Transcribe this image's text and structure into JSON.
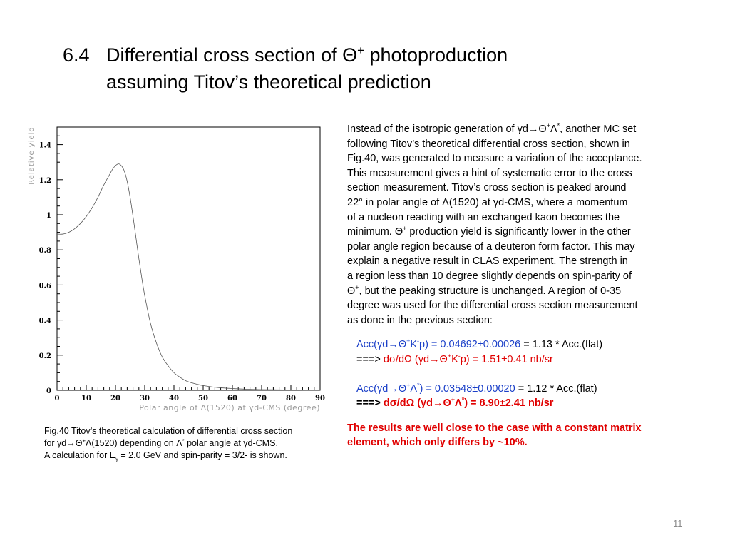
{
  "slide": {
    "section_number": "6.4",
    "title_line1_pre": "Differential cross section of ",
    "title_theta": "Θ",
    "title_plus": "+",
    "title_line1_post": " photoproduction",
    "title_line2": "assuming Titov’s theoretical prediction",
    "page_number": "11"
  },
  "caption": {
    "line1": "Fig.40 Titov’s theoretical calculation of differential cross section",
    "line2_a": "for γd→Θ",
    "line2_b": "+",
    "line2_c": "Λ(1520) depending on Λ",
    "line2_d": "*",
    "line2_e": " polar angle at γd-CMS.",
    "line3_a": "A calculation for E",
    "line3_b": "γ",
    "line3_c": " = 2.0 GeV and spin-parity = 3/2- is shown."
  },
  "text": {
    "p1_a": "Instead of the isotropic generation of γd→Θ",
    "p1_b": "+",
    "p1_c": "Λ",
    "p1_d": "*",
    "p1_e": ", another MC set",
    "lines": [
      "following Titov’s theoretical differential cross section, shown in",
      "Fig.40, was generated to measure a variation of the acceptance.",
      "This measurement gives a hint of systematic error to the cross",
      "section measurement. Titov’s cross section is peaked around",
      "22° in polar angle of Λ(1520) at γd-CMS, where a momentum",
      "of a nucleon reacting with an exchanged kaon becomes the"
    ],
    "p2_a": "minimum. Θ",
    "p2_b": "+",
    "p2_c": " production yield is significantly lower in the other",
    "lines2": [
      "polar angle region because of a deuteron form factor. This may",
      "explain a negative result in CLAS experiment. The strength in",
      "a region less than 10 degree slightly depends on spin-parity of"
    ],
    "p3_a": "Θ",
    "p3_b": "+",
    "p3_c": ", but the peaking structure is unchanged. A region of 0-35",
    "lines3": [
      "degree was used for the differential cross section measurement",
      "as done in the previous section:"
    ],
    "acc1_a": "Acc(γd→Θ",
    "acc1_b": "+",
    "acc1_c": "K",
    "acc1_d": "-",
    "acc1_e": "p) = 0.04692±0.00026",
    "acc1_f": " = 1.13 * Acc.(flat)",
    "res1_a": "===> ",
    "res1_b": "dσ/dΩ (γd→Θ",
    "res1_c": "+",
    "res1_d": "K",
    "res1_e": "-",
    "res1_f": "p) = 1.51±0.41 nb/sr",
    "acc2_a": "Acc(γd→Θ",
    "acc2_b": "+",
    "acc2_c": "Λ",
    "acc2_d": "*",
    "acc2_e": ")   = 0.03548±0.00020",
    "acc2_f": " = 1.12 * Acc.(flat)",
    "res2_a": "===> ",
    "res2_b": "dσ/dΩ (γd→Θ",
    "res2_c": "+",
    "res2_d": "Λ",
    "res2_e": "*",
    "res2_f": ")   = 8.90±2.41 nb/sr",
    "conclusion_line1": "The results are well close to the case with a constant matrix",
    "conclusion_line2": "element, which only differs by ~10%."
  },
  "colors": {
    "blue": "#1a3fc8",
    "red": "#e00000",
    "page_number": "#8a8a8a"
  },
  "chart_data": {
    "type": "line",
    "title": "",
    "xlabel": "Polar angle of Λ(1520) at γd-CMS (degree)",
    "ylabel": "Relative yield",
    "xlim": [
      0,
      90
    ],
    "ylim": [
      0,
      1.5
    ],
    "x_ticks": [
      "0",
      "10",
      "20",
      "30",
      "40",
      "50",
      "60",
      "70",
      "80",
      "90"
    ],
    "y_ticks": [
      "0",
      "0.2",
      "0.4",
      "0.6",
      "0.8",
      "1",
      "1.2",
      "1.4"
    ],
    "grid": false,
    "series": [
      {
        "x": [
          0,
          2,
          4,
          6,
          8,
          10,
          12,
          14,
          16,
          18,
          19,
          20,
          21,
          22,
          23,
          24,
          25,
          26,
          27,
          28,
          29,
          30,
          32,
          34,
          36,
          38,
          40,
          42,
          44,
          46,
          48,
          50,
          55,
          60,
          65,
          70,
          75,
          80,
          85,
          90
        ],
        "y": [
          0.89,
          0.89,
          0.9,
          0.92,
          0.95,
          0.99,
          1.04,
          1.1,
          1.17,
          1.23,
          1.26,
          1.28,
          1.29,
          1.28,
          1.25,
          1.19,
          1.1,
          0.99,
          0.87,
          0.75,
          0.64,
          0.54,
          0.38,
          0.27,
          0.19,
          0.14,
          0.1,
          0.075,
          0.055,
          0.043,
          0.034,
          0.027,
          0.016,
          0.01,
          0.006,
          0.004,
          0.003,
          0.002,
          0.001,
          0.001
        ]
      }
    ]
  }
}
